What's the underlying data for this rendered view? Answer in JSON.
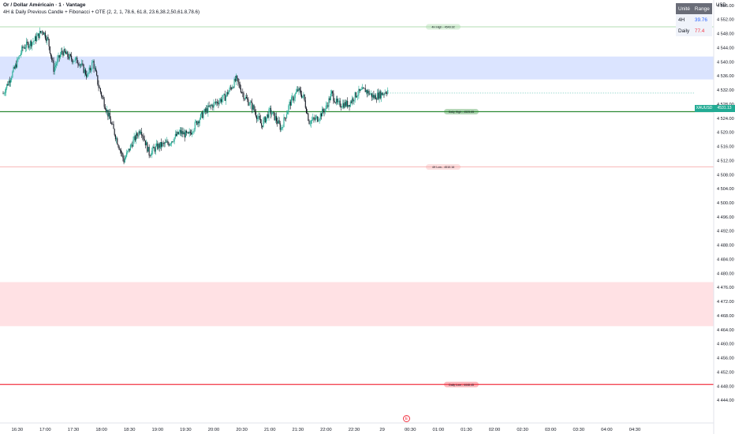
{
  "header": {
    "title": "Or / Dollar Américain · 1 · Vantage",
    "indicator": "4H & Daily Previous Candle + Fibonacci + OTE (2, 2, 1, 78.6, 61.8, 23.6,38.2,50,61.8,78.6)"
  },
  "range_table": {
    "headers": [
      "Unité",
      "Range"
    ],
    "rows": [
      {
        "unit": "4H",
        "range": "39.76",
        "color": "#2962ff"
      },
      {
        "unit": "Daily",
        "range": "77.4",
        "color": "#f23645"
      }
    ]
  },
  "currency": "USD",
  "symbol_tag": "XAUUSD",
  "last_price_label": "4531.13",
  "event_marker": "E",
  "colors": {
    "up": "#22ab94",
    "down": "#131722",
    "h4_zone": "#dbe4ff",
    "daily_zone": "#ffe1e4",
    "h4_high": "#9ad39a",
    "daily_high": "#2e8b35",
    "h4_low": "#f5a3a3",
    "daily_low": "#f23645"
  },
  "chart_data": {
    "type": "candlestick",
    "ylim": [
      4440,
      4560
    ],
    "y_ticks": [
      4444,
      4448,
      4452,
      4456,
      4460,
      4464,
      4468,
      4472,
      4476,
      4480,
      4484,
      4488,
      4492,
      4496,
      4500,
      4504,
      4508,
      4512,
      4516,
      4520,
      4524,
      4528,
      4532,
      4536,
      4540,
      4544,
      4548,
      4552,
      4556
    ],
    "y_tick_labels": [
      "4 444.00",
      "4 448.00",
      "4 452.00",
      "4 456.00",
      "4 460.00",
      "4 464.00",
      "4 468.00",
      "4 472.00",
      "4 476.00",
      "4 480.00",
      "4 484.00",
      "4 488.00",
      "4 492.00",
      "4 496.00",
      "4 500.00",
      "4 504.00",
      "4 508.00",
      "4 512.00",
      "4 516.00",
      "4 520.00",
      "4 524.00",
      "4 528.00",
      "4 532.00",
      "4 536.00",
      "4 540.00",
      "4 544.00",
      "4 548.00",
      "4 552.00",
      "4 556.00"
    ],
    "x_tick_labels": [
      "16:30",
      "17:00",
      "17:30",
      "18:00",
      "18:30",
      "19:00",
      "19:30",
      "20:00",
      "20:30",
      "21:00",
      "21:30",
      "22:00",
      "22:30",
      "29",
      "00:30",
      "01:00",
      "01:30",
      "02:00",
      "02:30",
      "03:00",
      "03:30",
      "04:00",
      "04:30"
    ],
    "levels": [
      {
        "name": "4H High",
        "label": "4H High - 4549.92",
        "value": 4549.92,
        "style": "h4_high"
      },
      {
        "name": "Daily High",
        "label": "Daily High - 4525.85",
        "value": 4525.85,
        "style": "daily_high"
      },
      {
        "name": "4H Low",
        "label": "4H Low - 4510.16",
        "value": 4510.16,
        "style": "h4_low"
      },
      {
        "name": "Daily Low",
        "label": "Daily Low - 4448.45",
        "value": 4448.45,
        "style": "daily_low"
      }
    ],
    "zones": [
      {
        "from": 4535,
        "to": 4541.5,
        "style": "h4_zone"
      },
      {
        "from": 4465,
        "to": 4477.5,
        "style": "daily_zone"
      }
    ],
    "last_price": 4531.13,
    "price_path": [
      [
        16.25,
        4531
      ],
      [
        16.45,
        4538
      ],
      [
        16.6,
        4544
      ],
      [
        16.8,
        4546
      ],
      [
        16.95,
        4549
      ],
      [
        17.05,
        4546
      ],
      [
        17.15,
        4538
      ],
      [
        17.3,
        4543
      ],
      [
        17.45,
        4541
      ],
      [
        17.6,
        4540
      ],
      [
        17.75,
        4536
      ],
      [
        17.85,
        4540
      ],
      [
        17.95,
        4533
      ],
      [
        18.1,
        4526
      ],
      [
        18.25,
        4519
      ],
      [
        18.4,
        4512
      ],
      [
        18.55,
        4517
      ],
      [
        18.7,
        4521
      ],
      [
        18.85,
        4514
      ],
      [
        19.0,
        4516
      ],
      [
        19.2,
        4517
      ],
      [
        19.4,
        4520
      ],
      [
        19.55,
        4519
      ],
      [
        19.7,
        4523
      ],
      [
        19.85,
        4526
      ],
      [
        20.0,
        4528
      ],
      [
        20.2,
        4530
      ],
      [
        20.4,
        4535
      ],
      [
        20.55,
        4530
      ],
      [
        20.7,
        4527
      ],
      [
        20.85,
        4522
      ],
      [
        21.0,
        4526
      ],
      [
        21.1,
        4524
      ],
      [
        21.2,
        4521
      ],
      [
        21.35,
        4528
      ],
      [
        21.5,
        4532
      ],
      [
        21.6,
        4530
      ],
      [
        21.7,
        4523
      ],
      [
        21.85,
        4524
      ],
      [
        22.0,
        4527
      ],
      [
        22.1,
        4531
      ],
      [
        22.2,
        4528
      ],
      [
        22.4,
        4528
      ],
      [
        22.55,
        4531
      ],
      [
        22.7,
        4532
      ],
      [
        22.85,
        4530
      ],
      [
        23.0,
        4531
      ],
      [
        23.1,
        4532
      ]
    ]
  }
}
